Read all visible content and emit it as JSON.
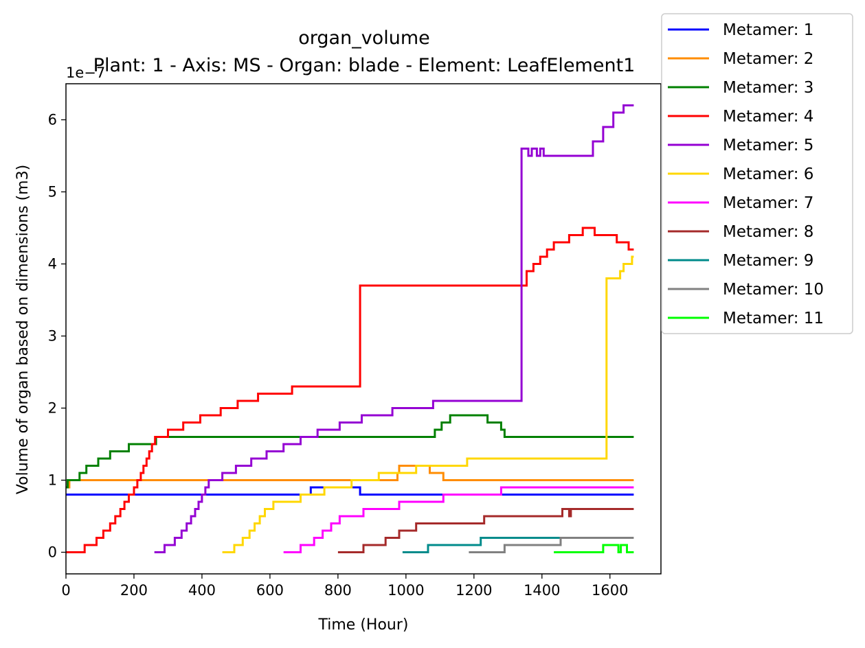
{
  "chart_data": {
    "type": "line",
    "title": "organ_volume",
    "subtitle": "Plant: 1 - Axis: MS - Organ: blade - Element: LeafElement1",
    "xlabel": "Time (Hour)",
    "ylabel": "Volume of organ based on dimensions (m3)",
    "offset_text": "1e−7",
    "xlim": [
      0,
      1750
    ],
    "ylim": [
      -0.3,
      6.5
    ],
    "xticks": [
      0,
      200,
      400,
      600,
      800,
      1000,
      1200,
      1400,
      1600
    ],
    "xtick_labels": [
      "0",
      "200",
      "400",
      "600",
      "800",
      "1000",
      "1200",
      "1400",
      "1600"
    ],
    "yticks": [
      0,
      1,
      2,
      3,
      4,
      5,
      6
    ],
    "ytick_labels": [
      "0",
      "1",
      "2",
      "3",
      "4",
      "5",
      "6"
    ],
    "grid": false,
    "legend_position": "outside top-right",
    "series": [
      {
        "name": "Metamer: 1",
        "color": "#0000ff",
        "points": [
          [
            0,
            0.8
          ],
          [
            720,
            0.8
          ],
          [
            720,
            0.9
          ],
          [
            865,
            0.9
          ],
          [
            865,
            0.8
          ],
          [
            1670,
            0.8
          ]
        ]
      },
      {
        "name": "Metamer: 2",
        "color": "#ff8c00",
        "points": [
          [
            0,
            0.9
          ],
          [
            10,
            0.9
          ],
          [
            10,
            1.0
          ],
          [
            975,
            1.0
          ],
          [
            975,
            1.1
          ],
          [
            980,
            1.1
          ],
          [
            980,
            1.2
          ],
          [
            1070,
            1.2
          ],
          [
            1070,
            1.1
          ],
          [
            1110,
            1.1
          ],
          [
            1110,
            1.0
          ],
          [
            1670,
            1.0
          ]
        ]
      },
      {
        "name": "Metamer: 3",
        "color": "#008000",
        "points": [
          [
            0,
            0.9
          ],
          [
            5,
            0.9
          ],
          [
            5,
            1.0
          ],
          [
            40,
            1.0
          ],
          [
            40,
            1.1
          ],
          [
            60,
            1.1
          ],
          [
            60,
            1.2
          ],
          [
            95,
            1.2
          ],
          [
            95,
            1.3
          ],
          [
            130,
            1.3
          ],
          [
            130,
            1.4
          ],
          [
            185,
            1.4
          ],
          [
            185,
            1.5
          ],
          [
            265,
            1.5
          ],
          [
            265,
            1.6
          ],
          [
            1085,
            1.6
          ],
          [
            1085,
            1.7
          ],
          [
            1105,
            1.7
          ],
          [
            1105,
            1.8
          ],
          [
            1130,
            1.8
          ],
          [
            1130,
            1.9
          ],
          [
            1240,
            1.9
          ],
          [
            1240,
            1.8
          ],
          [
            1280,
            1.8
          ],
          [
            1280,
            1.7
          ],
          [
            1290,
            1.7
          ],
          [
            1290,
            1.6
          ],
          [
            1670,
            1.6
          ]
        ]
      },
      {
        "name": "Metamer: 4",
        "color": "#ff0000",
        "points": [
          [
            0,
            0
          ],
          [
            55,
            0
          ],
          [
            55,
            0.1
          ],
          [
            90,
            0.1
          ],
          [
            90,
            0.2
          ],
          [
            110,
            0.2
          ],
          [
            110,
            0.3
          ],
          [
            130,
            0.3
          ],
          [
            130,
            0.4
          ],
          [
            145,
            0.4
          ],
          [
            145,
            0.5
          ],
          [
            160,
            0.5
          ],
          [
            160,
            0.6
          ],
          [
            172,
            0.6
          ],
          [
            172,
            0.7
          ],
          [
            185,
            0.7
          ],
          [
            185,
            0.8
          ],
          [
            200,
            0.8
          ],
          [
            200,
            0.9
          ],
          [
            210,
            0.9
          ],
          [
            210,
            1.0
          ],
          [
            220,
            1.0
          ],
          [
            220,
            1.1
          ],
          [
            228,
            1.1
          ],
          [
            228,
            1.2
          ],
          [
            237,
            1.2
          ],
          [
            237,
            1.3
          ],
          [
            245,
            1.3
          ],
          [
            245,
            1.4
          ],
          [
            253,
            1.4
          ],
          [
            253,
            1.5
          ],
          [
            262,
            1.5
          ],
          [
            262,
            1.6
          ],
          [
            300,
            1.6
          ],
          [
            300,
            1.7
          ],
          [
            345,
            1.7
          ],
          [
            345,
            1.8
          ],
          [
            395,
            1.8
          ],
          [
            395,
            1.9
          ],
          [
            455,
            1.9
          ],
          [
            455,
            2.0
          ],
          [
            505,
            2.0
          ],
          [
            505,
            2.1
          ],
          [
            565,
            2.1
          ],
          [
            565,
            2.2
          ],
          [
            665,
            2.2
          ],
          [
            665,
            2.3
          ],
          [
            865,
            2.3
          ],
          [
            865,
            3.7
          ],
          [
            1355,
            3.7
          ],
          [
            1355,
            3.9
          ],
          [
            1375,
            3.9
          ],
          [
            1375,
            4.0
          ],
          [
            1395,
            4.0
          ],
          [
            1395,
            4.1
          ],
          [
            1415,
            4.1
          ],
          [
            1415,
            4.2
          ],
          [
            1435,
            4.2
          ],
          [
            1435,
            4.3
          ],
          [
            1480,
            4.3
          ],
          [
            1480,
            4.4
          ],
          [
            1520,
            4.4
          ],
          [
            1520,
            4.5
          ],
          [
            1555,
            4.5
          ],
          [
            1555,
            4.4
          ],
          [
            1620,
            4.4
          ],
          [
            1620,
            4.3
          ],
          [
            1655,
            4.3
          ],
          [
            1655,
            4.2
          ],
          [
            1670,
            4.2
          ]
        ]
      },
      {
        "name": "Metamer: 5",
        "color": "#9400d3",
        "points": [
          [
            260,
            0
          ],
          [
            290,
            0
          ],
          [
            290,
            0.1
          ],
          [
            320,
            0.1
          ],
          [
            320,
            0.2
          ],
          [
            340,
            0.2
          ],
          [
            340,
            0.3
          ],
          [
            355,
            0.3
          ],
          [
            355,
            0.4
          ],
          [
            368,
            0.4
          ],
          [
            368,
            0.5
          ],
          [
            380,
            0.5
          ],
          [
            380,
            0.6
          ],
          [
            390,
            0.6
          ],
          [
            390,
            0.7
          ],
          [
            400,
            0.7
          ],
          [
            400,
            0.8
          ],
          [
            410,
            0.8
          ],
          [
            410,
            0.9
          ],
          [
            420,
            0.9
          ],
          [
            420,
            1.0
          ],
          [
            460,
            1.0
          ],
          [
            460,
            1.1
          ],
          [
            500,
            1.1
          ],
          [
            500,
            1.2
          ],
          [
            545,
            1.2
          ],
          [
            545,
            1.3
          ],
          [
            590,
            1.3
          ],
          [
            590,
            1.4
          ],
          [
            640,
            1.4
          ],
          [
            640,
            1.5
          ],
          [
            690,
            1.5
          ],
          [
            690,
            1.6
          ],
          [
            740,
            1.6
          ],
          [
            740,
            1.7
          ],
          [
            805,
            1.7
          ],
          [
            805,
            1.8
          ],
          [
            870,
            1.8
          ],
          [
            870,
            1.9
          ],
          [
            960,
            1.9
          ],
          [
            960,
            2.0
          ],
          [
            1080,
            2.0
          ],
          [
            1080,
            2.1
          ],
          [
            1340,
            2.1
          ],
          [
            1340,
            5.6
          ],
          [
            1360,
            5.6
          ],
          [
            1360,
            5.5
          ],
          [
            1370,
            5.5
          ],
          [
            1370,
            5.6
          ],
          [
            1385,
            5.6
          ],
          [
            1385,
            5.5
          ],
          [
            1395,
            5.5
          ],
          [
            1395,
            5.6
          ],
          [
            1405,
            5.6
          ],
          [
            1405,
            5.5
          ],
          [
            1550,
            5.5
          ],
          [
            1550,
            5.7
          ],
          [
            1580,
            5.7
          ],
          [
            1580,
            5.9
          ],
          [
            1610,
            5.9
          ],
          [
            1610,
            6.1
          ],
          [
            1640,
            6.1
          ],
          [
            1640,
            6.2
          ],
          [
            1670,
            6.2
          ]
        ]
      },
      {
        "name": "Metamer: 6",
        "color": "#ffd700",
        "points": [
          [
            460,
            0
          ],
          [
            495,
            0
          ],
          [
            495,
            0.1
          ],
          [
            520,
            0.1
          ],
          [
            520,
            0.2
          ],
          [
            540,
            0.2
          ],
          [
            540,
            0.3
          ],
          [
            555,
            0.3
          ],
          [
            555,
            0.4
          ],
          [
            570,
            0.4
          ],
          [
            570,
            0.5
          ],
          [
            585,
            0.5
          ],
          [
            585,
            0.6
          ],
          [
            610,
            0.6
          ],
          [
            610,
            0.7
          ],
          [
            690,
            0.7
          ],
          [
            690,
            0.8
          ],
          [
            760,
            0.8
          ],
          [
            760,
            0.9
          ],
          [
            840,
            0.9
          ],
          [
            840,
            1.0
          ],
          [
            920,
            1.0
          ],
          [
            920,
            1.1
          ],
          [
            1030,
            1.1
          ],
          [
            1030,
            1.2
          ],
          [
            1180,
            1.2
          ],
          [
            1180,
            1.3
          ],
          [
            1590,
            1.3
          ],
          [
            1590,
            3.8
          ],
          [
            1630,
            3.8
          ],
          [
            1630,
            3.9
          ],
          [
            1640,
            3.9
          ],
          [
            1640,
            4.0
          ],
          [
            1665,
            4.0
          ],
          [
            1665,
            4.1
          ],
          [
            1670,
            4.1
          ]
        ]
      },
      {
        "name": "Metamer: 7",
        "color": "#ff00ff",
        "points": [
          [
            640,
            0
          ],
          [
            690,
            0
          ],
          [
            690,
            0.1
          ],
          [
            730,
            0.1
          ],
          [
            730,
            0.2
          ],
          [
            755,
            0.2
          ],
          [
            755,
            0.3
          ],
          [
            780,
            0.3
          ],
          [
            780,
            0.4
          ],
          [
            805,
            0.4
          ],
          [
            805,
            0.5
          ],
          [
            875,
            0.5
          ],
          [
            875,
            0.6
          ],
          [
            980,
            0.6
          ],
          [
            980,
            0.7
          ],
          [
            1110,
            0.7
          ],
          [
            1110,
            0.8
          ],
          [
            1280,
            0.8
          ],
          [
            1280,
            0.9
          ],
          [
            1670,
            0.9
          ]
        ]
      },
      {
        "name": "Metamer: 8",
        "color": "#a52a2a",
        "points": [
          [
            800,
            0
          ],
          [
            875,
            0
          ],
          [
            875,
            0.1
          ],
          [
            940,
            0.1
          ],
          [
            940,
            0.2
          ],
          [
            980,
            0.2
          ],
          [
            980,
            0.3
          ],
          [
            1030,
            0.3
          ],
          [
            1030,
            0.4
          ],
          [
            1125,
            0.4
          ],
          [
            1125,
            0.4
          ],
          [
            1230,
            0.4
          ],
          [
            1230,
            0.5
          ],
          [
            1460,
            0.5
          ],
          [
            1460,
            0.6
          ],
          [
            1480,
            0.6
          ],
          [
            1480,
            0.5
          ],
          [
            1485,
            0.5
          ],
          [
            1485,
            0.6
          ],
          [
            1670,
            0.6
          ]
        ]
      },
      {
        "name": "Metamer: 9",
        "color": "#008b8b",
        "points": [
          [
            990,
            0
          ],
          [
            1065,
            0
          ],
          [
            1065,
            0.1
          ],
          [
            1220,
            0.1
          ],
          [
            1220,
            0.2
          ],
          [
            1460,
            0.2
          ]
        ]
      },
      {
        "name": "Metamer: 10",
        "color": "#808080",
        "points": [
          [
            1185,
            0
          ],
          [
            1290,
            0
          ],
          [
            1290,
            0.1
          ],
          [
            1455,
            0.1
          ],
          [
            1455,
            0.2
          ],
          [
            1670,
            0.2
          ]
        ]
      },
      {
        "name": "Metamer: 11",
        "color": "#00ff00",
        "points": [
          [
            1435,
            0
          ],
          [
            1580,
            0
          ],
          [
            1580,
            0.1
          ],
          [
            1625,
            0.1
          ],
          [
            1625,
            0
          ],
          [
            1632,
            0
          ],
          [
            1632,
            0.1
          ],
          [
            1650,
            0.1
          ],
          [
            1650,
            0
          ],
          [
            1670,
            0
          ]
        ]
      }
    ]
  }
}
